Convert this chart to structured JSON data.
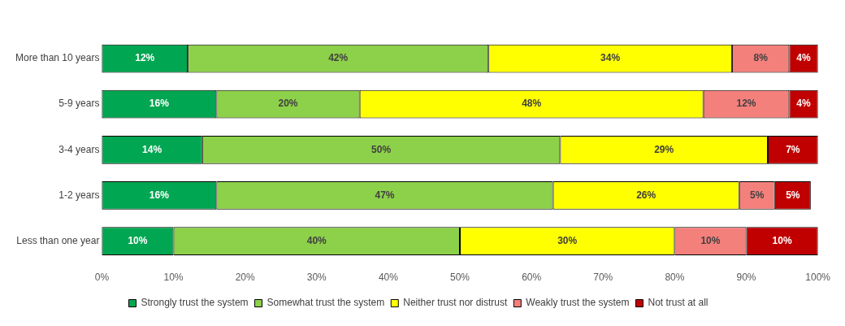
{
  "chart_data": {
    "type": "bar",
    "orientation": "horizontal",
    "stacked": true,
    "categories": [
      "More than 10 years",
      "5-9 years",
      "3-4 years",
      "1-2 years",
      "Less than one year"
    ],
    "series": [
      {
        "name": "Strongly trust the system",
        "color": "#00a651",
        "values": [
          12,
          16,
          14,
          16,
          10
        ],
        "value_labels": [
          "12%",
          "16%",
          "14%",
          "16%",
          "10%"
        ]
      },
      {
        "name": "Somewhat trust the system",
        "color": "#8dd04a",
        "values": [
          42,
          20,
          50,
          47,
          40
        ],
        "value_labels": [
          "42%",
          "20%",
          "50%",
          "47%",
          "40%"
        ]
      },
      {
        "name": "Neither trust nor distrust",
        "color": "#ffff00",
        "values": [
          34,
          48,
          29,
          26,
          30
        ],
        "value_labels": [
          "34%",
          "48%",
          "29%",
          "26%",
          "30%"
        ]
      },
      {
        "name": "Weakly trust the system",
        "color": "#f4807c",
        "values": [
          8,
          12,
          null,
          5,
          10
        ],
        "value_labels": [
          "8%",
          "12%",
          null,
          "5%",
          "10%"
        ]
      },
      {
        "name": "Not trust at all",
        "color": "#c00000",
        "values": [
          4,
          4,
          7,
          5,
          10
        ],
        "value_labels": [
          "4%",
          "4%",
          "7%",
          "5%",
          "10%"
        ]
      }
    ],
    "xlim": [
      0,
      100
    ],
    "xticks": [
      {
        "value": 0,
        "label": "0%"
      },
      {
        "value": 10,
        "label": "10%"
      },
      {
        "value": 20,
        "label": "20%"
      },
      {
        "value": 30,
        "label": "30%"
      },
      {
        "value": 40,
        "label": "40%"
      },
      {
        "value": 50,
        "label": "50%"
      },
      {
        "value": 60,
        "label": "60%"
      },
      {
        "value": 70,
        "label": "70%"
      },
      {
        "value": 80,
        "label": "80%"
      },
      {
        "value": 90,
        "label": "90%"
      },
      {
        "value": 100,
        "label": "100%"
      }
    ],
    "grid": false,
    "legend": "bottom"
  }
}
